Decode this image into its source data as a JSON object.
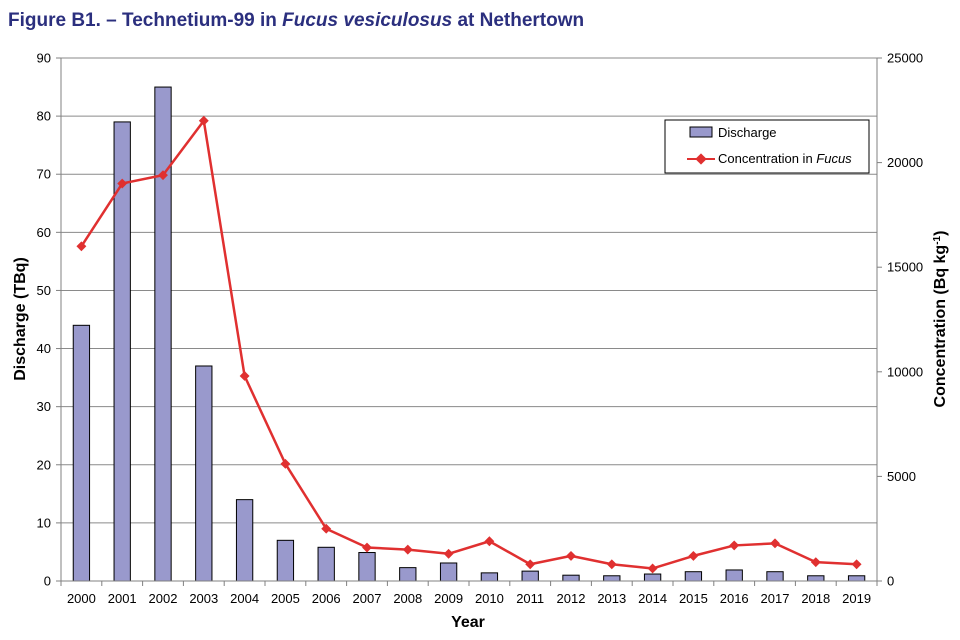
{
  "figure": {
    "title_prefix": "Figure B1. – Technetium-99 in ",
    "title_species": "Fucus vesiculosus",
    "title_suffix": " at Nethertown"
  },
  "chart_data": {
    "type": "bar+line",
    "categories": [
      "2000",
      "2001",
      "2002",
      "2003",
      "2004",
      "2005",
      "2006",
      "2007",
      "2008",
      "2009",
      "2010",
      "2011",
      "2012",
      "2013",
      "2014",
      "2015",
      "2016",
      "2017",
      "2018",
      "2019"
    ],
    "series": [
      {
        "name": "Discharge",
        "type": "bar",
        "axis": "left",
        "color": "#9999cc",
        "values": [
          44,
          79,
          85,
          37,
          14,
          7,
          5.8,
          4.9,
          2.3,
          3.1,
          1.4,
          1.7,
          1.0,
          0.9,
          1.2,
          1.6,
          1.9,
          1.6,
          0.9,
          0.9
        ]
      },
      {
        "name_prefix": "Concentration in ",
        "name_italic": "Fucus",
        "type": "line",
        "axis": "right",
        "color": "#e03030",
        "values": [
          16000,
          19000,
          19400,
          22000,
          9800,
          5600,
          2500,
          1600,
          1500,
          1300,
          1900,
          800,
          1200,
          800,
          600,
          1200,
          1700,
          1800,
          900,
          800
        ]
      }
    ],
    "xlabel": "Year",
    "ylabel_left": "Discharge (TBq)",
    "ylabel_right_base": "Concentration (Bq kg",
    "ylabel_right_sup": "-1",
    "ylabel_right_close": ")",
    "ylim_left": [
      0,
      90
    ],
    "ylim_right": [
      0,
      25000
    ],
    "yticks_left": [
      0,
      10,
      20,
      30,
      40,
      50,
      60,
      70,
      80,
      90
    ],
    "yticks_right": [
      0,
      5000,
      10000,
      15000,
      20000,
      25000
    ],
    "grid": true,
    "legend_position": "top-right"
  }
}
